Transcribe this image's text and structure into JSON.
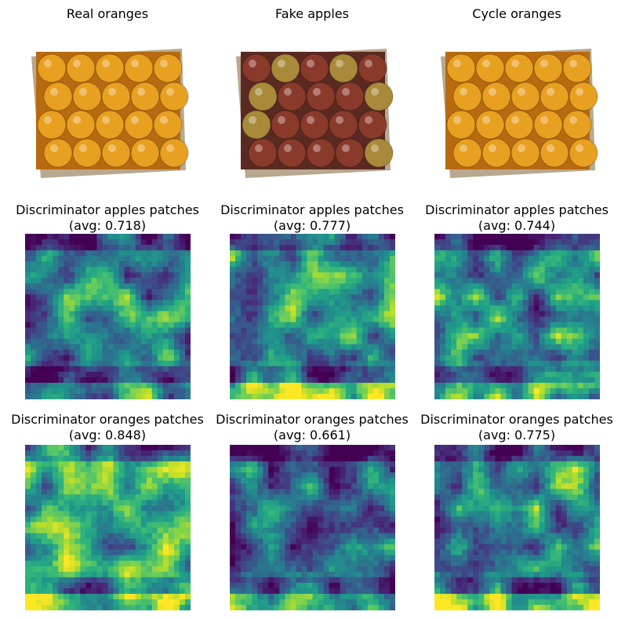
{
  "chart_data": [
    {
      "type": "image",
      "title": "Real oranges",
      "image_kind": "oranges"
    },
    {
      "type": "image",
      "title": "Fake apples",
      "image_kind": "apples"
    },
    {
      "type": "image",
      "title": "Cycle oranges",
      "image_kind": "oranges"
    },
    {
      "type": "heatmap",
      "title": "Discriminator apples patches",
      "subtitle": "(avg: 0.718)",
      "avg": 0.718,
      "grid": [
        30,
        30
      ],
      "colormap": "viridis"
    },
    {
      "type": "heatmap",
      "title": "Discriminator apples patches",
      "subtitle": "(avg: 0.777)",
      "avg": 0.777,
      "grid": [
        30,
        30
      ],
      "colormap": "viridis"
    },
    {
      "type": "heatmap",
      "title": "Discriminator apples patches",
      "subtitle": "(avg: 0.744)",
      "avg": 0.744,
      "grid": [
        30,
        30
      ],
      "colormap": "viridis"
    },
    {
      "type": "heatmap",
      "title": "Discriminator oranges patches",
      "subtitle": "(avg: 0.848)",
      "avg": 0.848,
      "grid": [
        30,
        30
      ],
      "colormap": "viridis"
    },
    {
      "type": "heatmap",
      "title": "Discriminator oranges patches",
      "subtitle": "(avg: 0.661)",
      "avg": 0.661,
      "grid": [
        30,
        30
      ],
      "colormap": "viridis"
    },
    {
      "type": "heatmap",
      "title": "Discriminator oranges patches",
      "subtitle": "(avg: 0.775)",
      "avg": 0.775,
      "grid": [
        30,
        30
      ],
      "colormap": "viridis"
    }
  ],
  "colors": {
    "orange": "#e8a020",
    "apple": "#8a3a2a",
    "box": "#b8a890",
    "viridis_low": "#440154",
    "viridis_mid": "#21918c",
    "viridis_high": "#fde725"
  }
}
